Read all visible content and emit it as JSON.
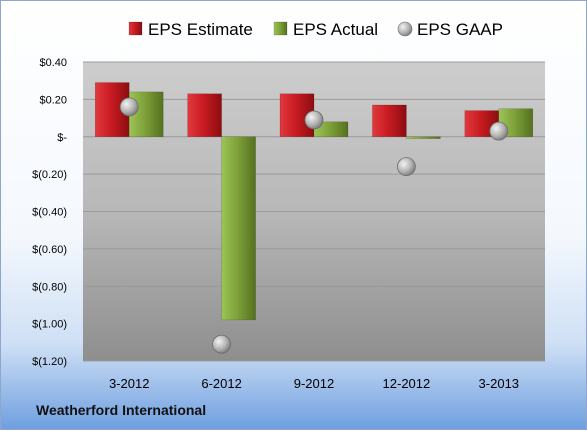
{
  "company": "Weatherford International",
  "chart_data": {
    "type": "bar",
    "categories": [
      "3-2012",
      "6-2012",
      "9-2012",
      "12-2012",
      "3-2013"
    ],
    "series": [
      {
        "name": "EPS Estimate",
        "kind": "bar",
        "color": "#c0151b",
        "values": [
          0.29,
          0.23,
          0.23,
          0.17,
          0.14
        ]
      },
      {
        "name": "EPS Actual",
        "kind": "bar",
        "color": "#7fa23a",
        "values": [
          0.24,
          -0.98,
          0.08,
          -0.01,
          0.15
        ]
      },
      {
        "name": "EPS GAAP",
        "kind": "point",
        "color": "#a9a9a9",
        "values": [
          0.16,
          -1.11,
          0.09,
          -0.16,
          0.03
        ]
      }
    ],
    "ylim": [
      -1.2,
      0.4
    ],
    "yticks": [
      0.4,
      0.2,
      0,
      -0.2,
      -0.4,
      -0.6,
      -0.8,
      -1.0,
      -1.2
    ],
    "ytick_labels": [
      "$0.40",
      "$0.20",
      "$-",
      "$(0.20)",
      "$(0.40)",
      "$(0.60)",
      "$(0.80)",
      "$(1.00)",
      "$(1.20)"
    ],
    "grid": true,
    "legend_position": "top"
  }
}
